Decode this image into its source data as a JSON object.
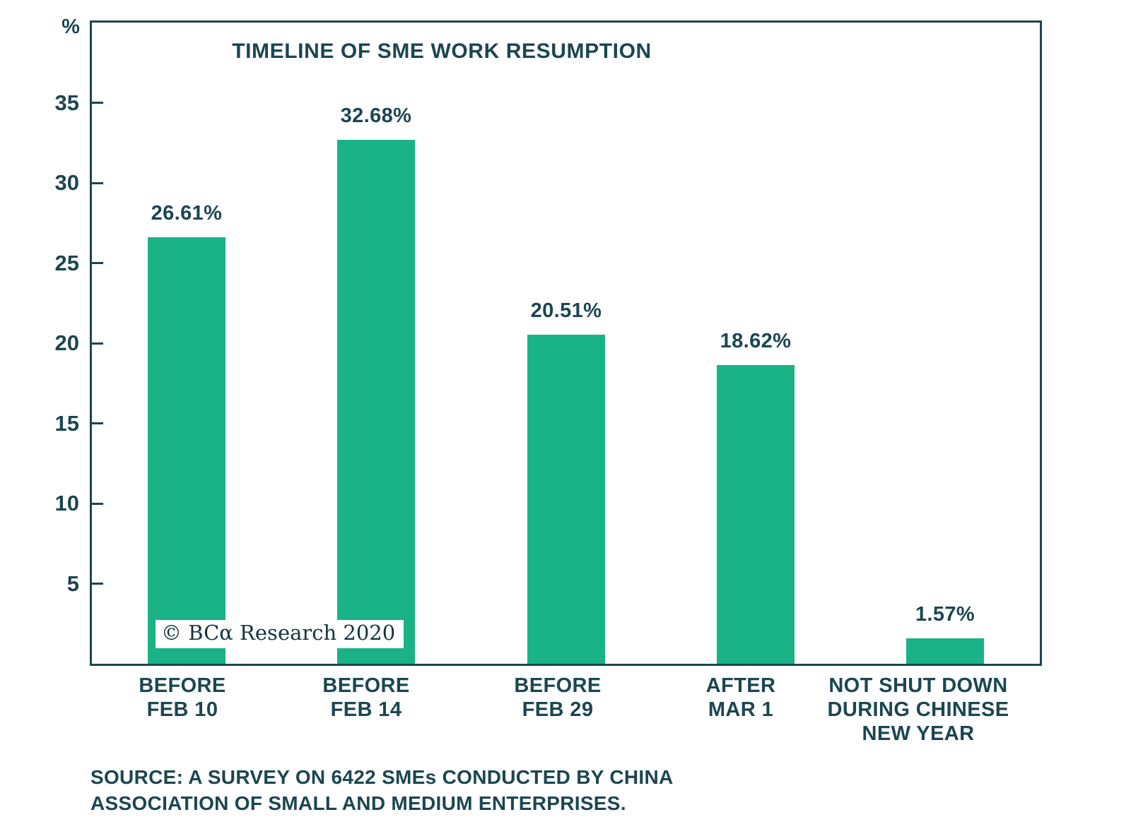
{
  "watermark": "© BCα Research 2020",
  "source": {
    "line1": "SOURCE: A SURVEY ON 6422 SMEs CONDUCTED BY CHINA",
    "line2": "ASSOCIATION OF SMALL AND MEDIUM ENTERPRISES."
  },
  "chart_data": {
    "type": "bar",
    "title": "TIMELINE OF SME WORK RESUMPTION",
    "y_axis_unit": "%",
    "categories": [
      "BEFORE FEB 10",
      "BEFORE FEB 14",
      "BEFORE FEB 29",
      "AFTER MAR 1",
      "NOT SHUT DOWN DURING CHINESE NEW YEAR"
    ],
    "category_lines": [
      [
        "BEFORE",
        "FEB 10"
      ],
      [
        "BEFORE",
        "FEB 14"
      ],
      [
        "BEFORE",
        "FEB 29"
      ],
      [
        "AFTER",
        "MAR 1"
      ],
      [
        "NOT SHUT DOWN",
        "DURING CHINESE",
        "NEW YEAR"
      ]
    ],
    "values": [
      26.61,
      32.68,
      20.51,
      18.62,
      1.57
    ],
    "value_labels": [
      "26.61%",
      "32.68%",
      "20.51%",
      "18.62%",
      "1.57%"
    ],
    "ylabel": "",
    "xlabel": "",
    "ylim": [
      0,
      40
    ],
    "yticks": [
      5,
      10,
      15,
      20,
      25,
      30,
      35
    ],
    "grid": false,
    "legend": null,
    "bar_color": "#1ab287",
    "text_color": "#1b4650",
    "axis_color": "#1b4650"
  }
}
